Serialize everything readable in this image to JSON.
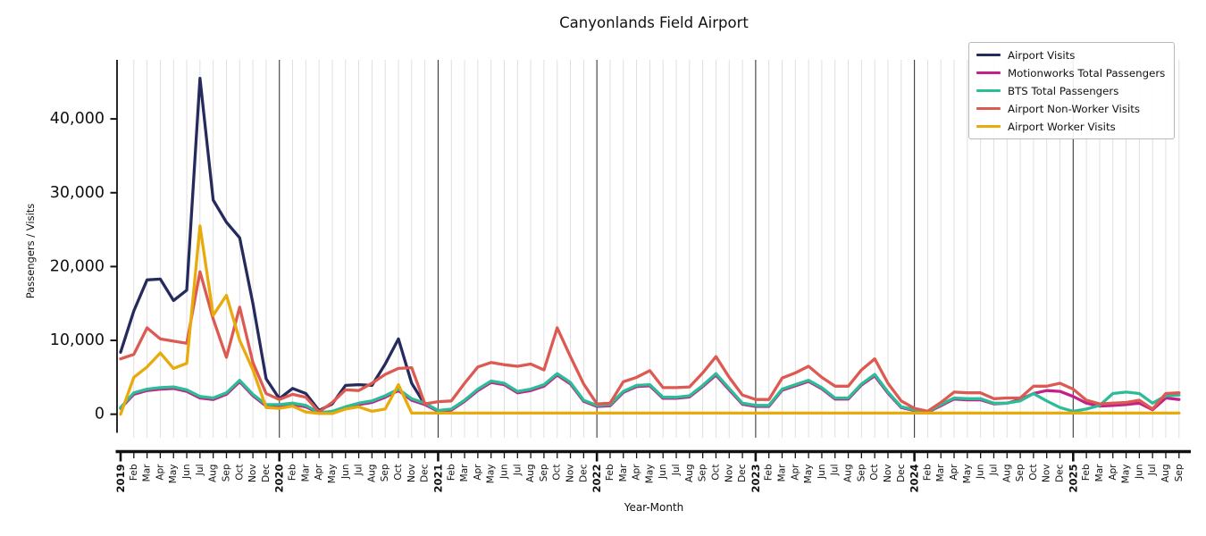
{
  "chart_data": {
    "type": "line",
    "title": "Canyonlands Field Airport",
    "xlabel": "Year-Month",
    "ylabel": "Passengers / Visits",
    "ylim": [
      -5000,
      48000
    ],
    "yticks": [
      0,
      10000,
      20000,
      30000,
      40000
    ],
    "grid": "vertical gridline per month; dark vertical line at each January (year start); no horizontal gridlines",
    "legend_position": "upper right",
    "x_categories": [
      "2019",
      "Feb",
      "Mar",
      "Apr",
      "May",
      "Jun",
      "Jul",
      "Aug",
      "Sep",
      "Oct",
      "Nov",
      "Dec",
      "2020",
      "Feb",
      "Mar",
      "Apr",
      "May",
      "Jun",
      "Jul",
      "Aug",
      "Sep",
      "Oct",
      "Nov",
      "Dec",
      "2021",
      "Feb",
      "Mar",
      "Apr",
      "May",
      "Jun",
      "Jul",
      "Aug",
      "Sep",
      "Oct",
      "Nov",
      "Dec",
      "2022",
      "Feb",
      "Mar",
      "Apr",
      "May",
      "Jun",
      "Jul",
      "Aug",
      "Sep",
      "Oct",
      "Nov",
      "Dec",
      "2023",
      "Feb",
      "Mar",
      "Apr",
      "May",
      "Jun",
      "Jul",
      "Aug",
      "Sep",
      "Oct",
      "Nov",
      "Dec",
      "2024",
      "Feb",
      "Mar",
      "Apr",
      "May",
      "Jun",
      "Jul",
      "Aug",
      "Sep",
      "Oct",
      "Nov",
      "Dec",
      "2025",
      "Feb",
      "Mar",
      "Apr",
      "May",
      "Jun",
      "Jul",
      "Aug",
      "Sep"
    ],
    "series": [
      {
        "name": "Airport Visits",
        "color": "#262b5e",
        "values": [
          8400,
          14000,
          18200,
          18300,
          15400,
          16800,
          45500,
          29000,
          26000,
          23900,
          15000,
          4800,
          2100,
          3500,
          2800,
          500,
          1400,
          3900,
          4000,
          3900,
          6800,
          10200,
          4200,
          1300,
          null,
          null,
          null,
          null,
          null,
          null,
          null,
          null,
          null,
          null,
          null,
          null,
          null,
          null,
          null,
          null,
          null,
          null,
          null,
          null,
          null,
          null,
          null,
          null,
          null,
          null,
          null,
          null,
          null,
          null,
          null,
          null,
          null,
          null,
          null,
          null,
          null,
          null,
          null,
          null,
          null,
          null,
          null,
          null,
          null,
          null,
          null,
          null,
          null,
          null,
          null,
          null,
          null,
          null,
          null,
          null,
          null
        ]
      },
      {
        "name": "Motionworks Total Passengers",
        "color": "#c32188",
        "values": [
          800,
          2700,
          3200,
          3400,
          3500,
          3100,
          2200,
          2000,
          2700,
          4400,
          2500,
          1100,
          1100,
          1300,
          1000,
          150,
          300,
          800,
          1300,
          1600,
          2300,
          3200,
          1900,
          1300,
          400,
          550,
          1750,
          3200,
          4300,
          4000,
          2900,
          3200,
          3800,
          5300,
          4100,
          1750,
          1050,
          1150,
          2950,
          3750,
          3850,
          2150,
          2150,
          2350,
          3750,
          5300,
          3300,
          1350,
          1050,
          1050,
          3250,
          3850,
          4450,
          3450,
          2050,
          2050,
          3950,
          5200,
          2850,
          900,
          500,
          250,
          1150,
          2050,
          1950,
          1950,
          1400,
          1500,
          2000,
          2800,
          3200,
          3100,
          2400,
          1500,
          1100,
          1200,
          1300,
          1500,
          600,
          2200,
          2000
        ]
      },
      {
        "name": "BTS Total Passengers",
        "color": "#2cbc97",
        "values": [
          900,
          2900,
          3400,
          3600,
          3700,
          3300,
          2400,
          2200,
          2900,
          4600,
          2700,
          1300,
          1300,
          1500,
          1200,
          200,
          400,
          1000,
          1500,
          1800,
          2500,
          3400,
          2100,
          1500,
          500,
          700,
          1900,
          3400,
          4500,
          4200,
          3100,
          3400,
          4000,
          5500,
          4300,
          1900,
          1200,
          1300,
          3100,
          3900,
          4000,
          2300,
          2300,
          2500,
          3900,
          5500,
          3500,
          1500,
          1200,
          1200,
          3400,
          4000,
          4600,
          3600,
          2200,
          2200,
          4100,
          5400,
          3000,
          1000,
          600,
          300,
          1300,
          2200,
          2100,
          2100,
          1500,
          1500,
          1800,
          2800,
          1800,
          900,
          400,
          700,
          1200,
          2800,
          3000,
          2800,
          1500,
          2500,
          2600
        ]
      },
      {
        "name": "Airport Non-Worker Visits",
        "color": "#dc5a52",
        "values": [
          7500,
          8100,
          11700,
          10200,
          9900,
          9600,
          19300,
          12900,
          7700,
          14500,
          7000,
          2800,
          2000,
          2700,
          2300,
          300,
          1600,
          3300,
          3200,
          4200,
          5400,
          6200,
          6300,
          1400,
          1700,
          1800,
          4200,
          6400,
          7000,
          6700,
          6500,
          6800,
          6000,
          11700,
          7800,
          4100,
          1400,
          1500,
          4400,
          5000,
          5900,
          3600,
          3600,
          3700,
          5600,
          7800,
          5000,
          2600,
          2000,
          2000,
          4900,
          5600,
          6500,
          5000,
          3800,
          3800,
          6000,
          7500,
          4200,
          1800,
          800,
          400,
          1600,
          3000,
          2900,
          2900,
          2100,
          2200,
          2200,
          3800,
          3800,
          4200,
          3400,
          1900,
          1400,
          1500,
          1600,
          1900,
          700,
          2800,
          2900
        ]
      },
      {
        "name": "Airport Worker Visits",
        "color": "#e8ab0b",
        "values": [
          0,
          5000,
          6400,
          8300,
          6200,
          6900,
          25500,
          13400,
          16100,
          10000,
          6000,
          900,
          800,
          1100,
          300,
          100,
          100,
          700,
          1000,
          400,
          700,
          4000,
          150,
          150,
          150,
          150,
          150,
          150,
          150,
          150,
          150,
          150,
          150,
          150,
          150,
          150,
          150,
          150,
          150,
          150,
          150,
          150,
          150,
          150,
          150,
          150,
          150,
          150,
          150,
          150,
          150,
          150,
          150,
          150,
          150,
          150,
          150,
          150,
          150,
          150,
          150,
          150,
          150,
          150,
          150,
          150,
          150,
          150,
          150,
          150,
          150,
          150,
          150,
          150,
          150,
          150,
          150,
          150,
          150,
          150,
          150
        ]
      }
    ]
  }
}
